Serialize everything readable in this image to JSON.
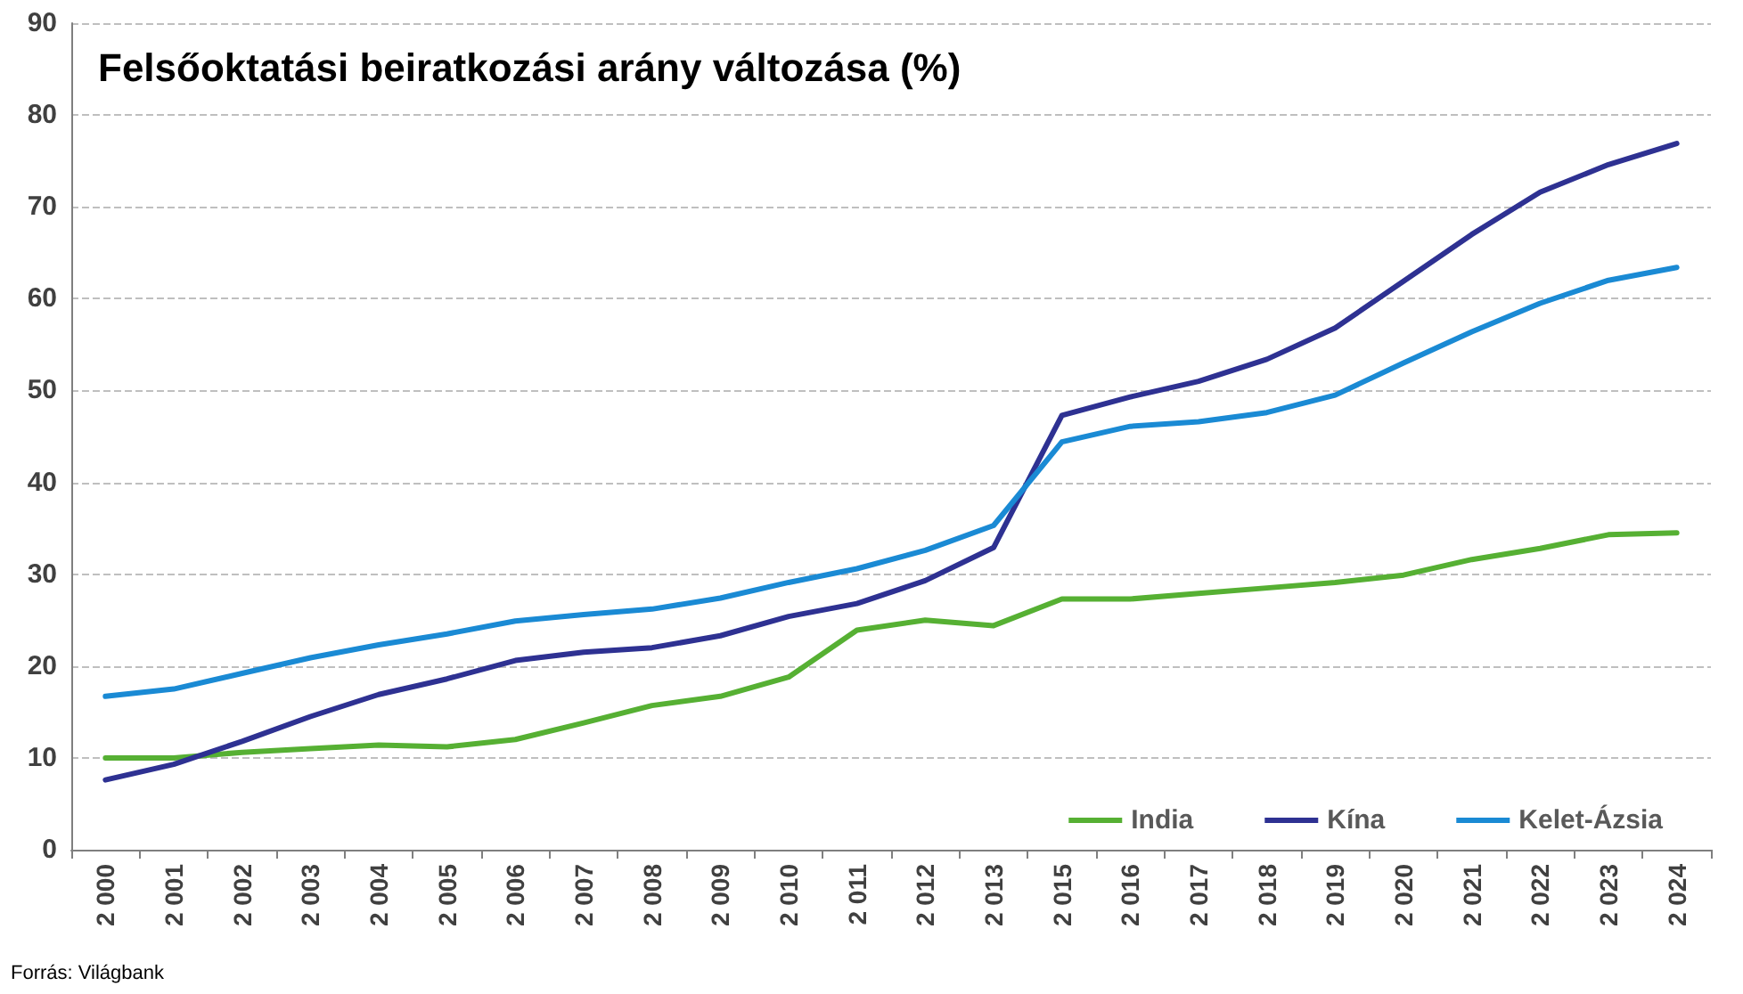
{
  "chart_data": {
    "type": "line",
    "title": "Felsőoktatási beiratkozási arány változása (%)",
    "annotations": [
      "Forrás: Világbank"
    ],
    "categories": [
      "2 000",
      "2 001",
      "2 002",
      "2 003",
      "2 004",
      "2 005",
      "2 006",
      "2 007",
      "2 008",
      "2 009",
      "2 010",
      "2 011",
      "2 012",
      "2 013",
      "2 015",
      "2 016",
      "2 017",
      "2 018",
      "2 019",
      "2 020",
      "2 021",
      "2 022",
      "2 023",
      "2 024"
    ],
    "series": [
      {
        "name": "India",
        "color": "#56b033",
        "values": [
          10,
          10,
          10.6,
          11,
          11.4,
          11.2,
          12,
          13.8,
          15.7,
          16.7,
          18.8,
          23.9,
          25,
          24.4,
          27.3,
          27.3,
          27.9,
          28.5,
          29.1,
          29.9,
          31.6,
          32.8,
          34.3,
          34.5
        ]
      },
      {
        "name": "Kína",
        "color": "#2e3192",
        "values": [
          7.6,
          9.3,
          11.8,
          14.5,
          16.9,
          18.6,
          20.6,
          21.5,
          22,
          23.3,
          25.4,
          26.8,
          29.3,
          32.9,
          47.3,
          49.3,
          51,
          53.4,
          56.8,
          61.9,
          67,
          71.6,
          74.6,
          76.9
        ]
      },
      {
        "name": "Kelet-Ázsia",
        "color": "#1a8ad4",
        "values": [
          16.7,
          17.5,
          19.2,
          20.9,
          22.3,
          23.5,
          24.9,
          25.6,
          26.2,
          27.4,
          29.1,
          30.6,
          32.6,
          35.3,
          44.4,
          46.1,
          46.6,
          47.6,
          49.5,
          53,
          56.4,
          59.5,
          62,
          63.4
        ]
      }
    ],
    "ylim": [
      0,
      90
    ],
    "yticks": [
      0,
      10,
      20,
      30,
      40,
      50,
      60,
      70,
      80,
      90
    ],
    "grid": "y",
    "legend": "bottom right",
    "marker": "none",
    "line_style": "solid"
  }
}
